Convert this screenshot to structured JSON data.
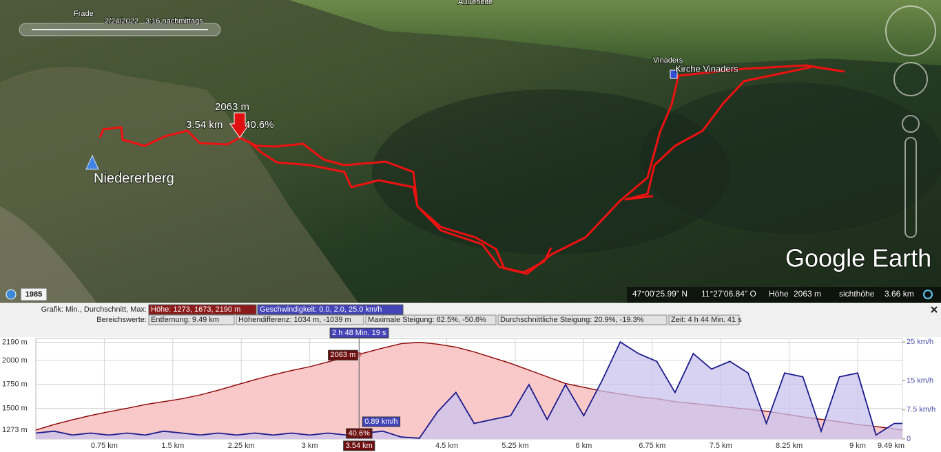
{
  "map": {
    "timeline_label": "Frade",
    "date": "2/24/2022",
    "time": "3:16 nachmittags",
    "places": [
      "Außerleite",
      "Vinaders",
      "Kirche Vinaders",
      "Niedererberg"
    ],
    "marker": {
      "elevation": "2063 m",
      "distance": "3.54 km",
      "slope": "40.6%"
    },
    "logo": "Google Earth",
    "imagery_year": "1985"
  },
  "status_bar": {
    "latitude": "47°00'25.99\" N",
    "longitude": "11°27'06.84\" O",
    "elevation_label": "Höhe",
    "elevation": "2063 m",
    "eye_alt_label": "sichthöhe",
    "eye_alt": "3.66 km"
  },
  "stats": {
    "graph_label": "Grafik: Min., Durchschnitt, Max:",
    "elevation": "Höhe: 1273, 1673, 2190 m",
    "speed": "Geschwindigkeit: 0.0, 2.0, 25.0 km/h",
    "range_label": "Bereichswerte:",
    "distance": "Entfernung: 9.49 km",
    "elevation_diff": "Höhendifferenz: 1034 m, -1039 m",
    "max_slope": "Maximale Steigung: 62.5%, -50.6%",
    "avg_slope": "Durchschnittliche Steigung: 20.9%, -19.3%",
    "time": "Zeit: 4 h 44 Min. 41 s"
  },
  "chart_data": {
    "type": "line",
    "x": [
      0,
      0.2,
      0.4,
      0.6,
      0.8,
      1.0,
      1.2,
      1.4,
      1.6,
      1.8,
      2.0,
      2.2,
      2.4,
      2.6,
      2.8,
      3.0,
      3.2,
      3.4,
      3.6,
      3.8,
      4.0,
      4.2,
      4.4,
      4.6,
      4.8,
      5.0,
      5.2,
      5.4,
      5.6,
      5.8,
      6.0,
      6.2,
      6.4,
      6.6,
      6.8,
      7.0,
      7.2,
      7.4,
      7.6,
      7.8,
      8.0,
      8.2,
      8.4,
      8.6,
      8.8,
      9.0,
      9.2,
      9.4,
      9.49
    ],
    "series": [
      {
        "color": "#8b0000",
        "fill": "#f9c9c9",
        "values": [
          1273,
          1330,
          1380,
          1425,
          1465,
          1500,
          1540,
          1570,
          1600,
          1640,
          1690,
          1745,
          1800,
          1850,
          1895,
          1935,
          1985,
          2035,
          2080,
          2130,
          2175,
          2190,
          2170,
          2140,
          2090,
          2030,
          1970,
          1900,
          1830,
          1760,
          1720,
          1680,
          1650,
          1620,
          1600,
          1570,
          1550,
          1530,
          1510,
          1490,
          1470,
          1440,
          1410,
          1385,
          1360,
          1330,
          1310,
          1285,
          1273
        ]
      },
      {
        "color": "#1a1a8c",
        "fill": "#c9c3ee",
        "axis": "y2",
        "values": [
          1.5,
          2.0,
          1.0,
          1.5,
          1.0,
          1.5,
          1.0,
          2.0,
          1.5,
          1.0,
          1.5,
          1.0,
          1.5,
          1.0,
          1.5,
          1.0,
          1.5,
          1.0,
          1.5,
          2.0,
          0.5,
          0.2,
          7,
          12,
          4,
          5,
          6,
          14,
          5,
          14,
          6,
          15,
          25,
          22,
          20,
          12,
          22,
          18,
          20,
          17,
          4,
          17,
          16,
          2,
          16,
          17,
          1,
          4,
          4
        ]
      }
    ],
    "xlim": [
      0,
      9.49
    ],
    "xticks": [
      {
        "value": 0.75,
        "label": "0.75 km"
      },
      {
        "value": 1.5,
        "label": "1.5 km"
      },
      {
        "value": 2.25,
        "label": "2.25 km"
      },
      {
        "value": 3,
        "label": "3 km"
      },
      {
        "value": 4.5,
        "label": "4.5 km"
      },
      {
        "value": 5.25,
        "label": "5.25 km"
      },
      {
        "value": 6,
        "label": "6 km"
      },
      {
        "value": 6.75,
        "label": "6.75 km"
      },
      {
        "value": 7.5,
        "label": "7.5 km"
      },
      {
        "value": 8.25,
        "label": "8.25 km"
      },
      {
        "value": 9,
        "label": "9 km"
      },
      {
        "value": 9.49,
        "label": "9.49 km"
      }
    ],
    "ylim": [
      1180,
      2230
    ],
    "yticks": [
      {
        "value": 1273,
        "label": "1273 m"
      },
      {
        "value": 1500,
        "label": "1500 m"
      },
      {
        "value": 1750,
        "label": "1750 m"
      },
      {
        "value": 2000,
        "label": "2000 m"
      },
      {
        "value": 2190,
        "label": "2190 m"
      }
    ],
    "y2lim": [
      0,
      25.9
    ],
    "y2ticks": [
      0,
      {
        "value": 7.5,
        "label": "7.5 km/h"
      },
      {
        "value": 15,
        "label": "15 km/h"
      },
      {
        "value": 25,
        "label": "25 km/h"
      }
    ],
    "grid": true,
    "cursor": {
      "x": 3.54,
      "x_label": "3.54 km",
      "elevation": 2063,
      "elevation_label": "2063 m",
      "speed": 0.89,
      "speed_label": "0.89 km/h",
      "slope_label": "40.6%",
      "time_label": "2 h 48 Min. 19 s"
    }
  }
}
